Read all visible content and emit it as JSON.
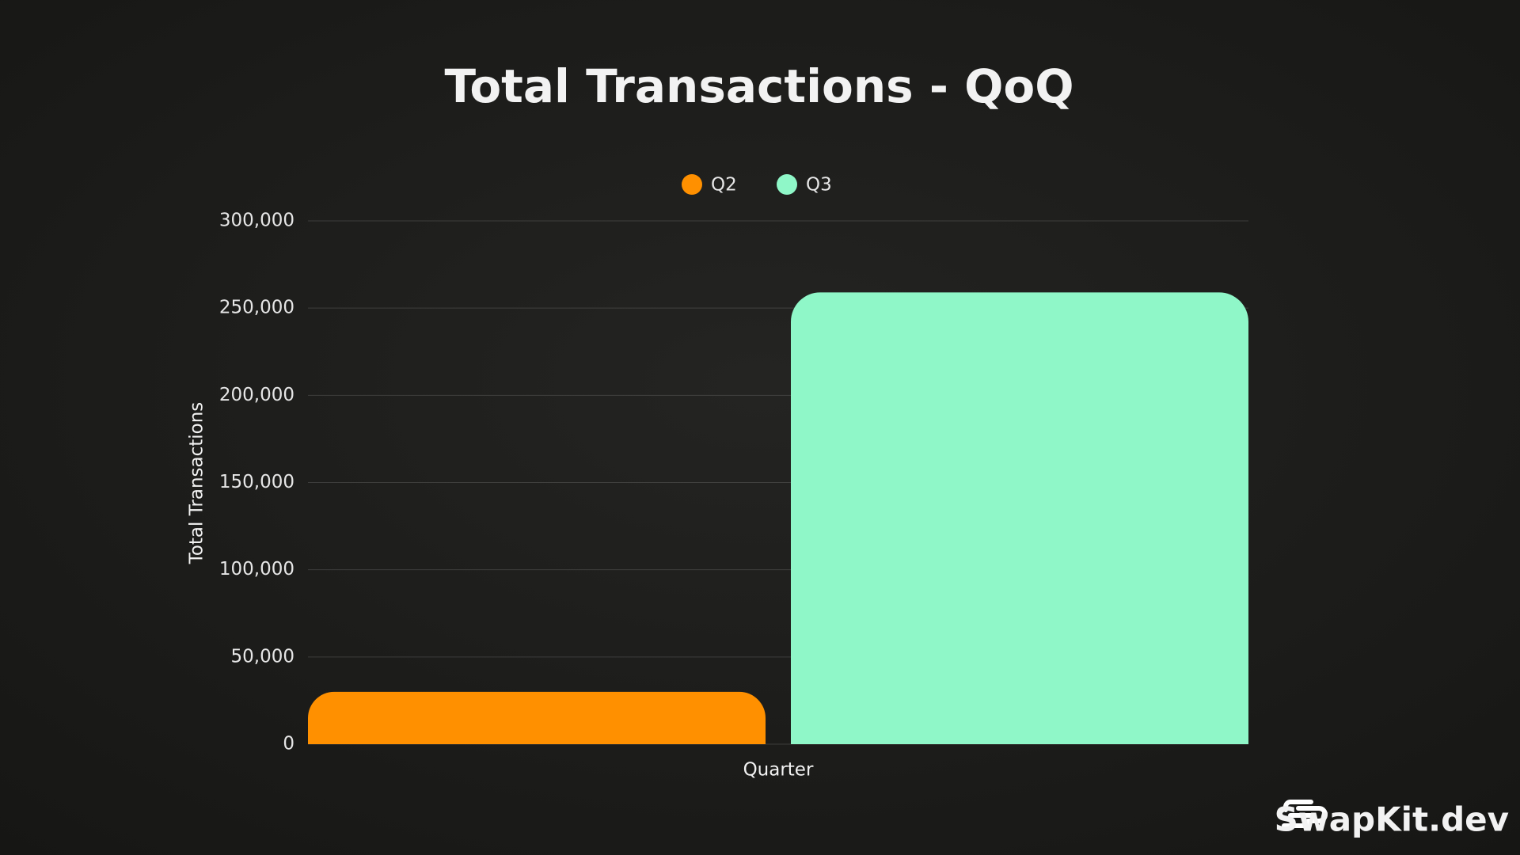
{
  "chart_data": {
    "type": "bar",
    "title": "Total Transactions - QoQ",
    "categories": [
      null
    ],
    "series": [
      {
        "name": "Q2",
        "color": "#ff9000",
        "values": [
          30000
        ]
      },
      {
        "name": "Q3",
        "color": "#8ff7c8",
        "values": [
          259000
        ]
      }
    ],
    "x_label": "Quarter",
    "y_label": "Total Transactions",
    "ylim": [
      0,
      300000
    ],
    "yticks": [
      0,
      {
        "value": 50000,
        "label": "50,000"
      },
      {
        "value": 100000,
        "label": "100,000"
      },
      {
        "value": 150000,
        "label": "150,000"
      },
      {
        "value": 200000,
        "label": "200,000"
      },
      {
        "value": 250000,
        "label": "250,000"
      },
      {
        "value": 300000,
        "label": "300,000"
      }
    ],
    "grid": true,
    "legend": "top"
  },
  "brand": "SwapKit.dev"
}
